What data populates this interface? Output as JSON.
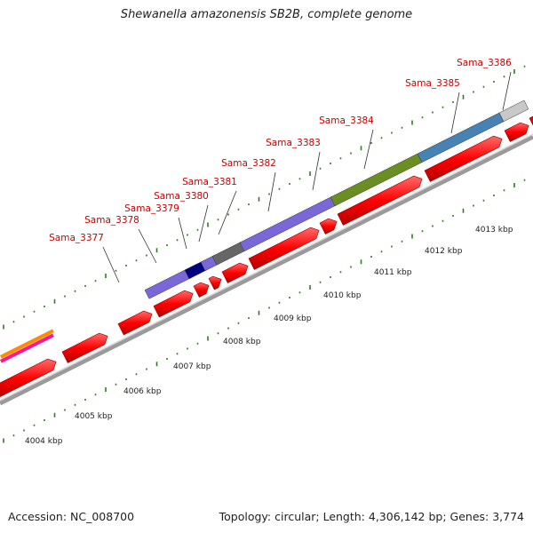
{
  "title": "Shewanella amazonensis SB2B, complete genome",
  "footer": {
    "accession": "Accession: NC_008700",
    "summary": "Topology: circular; Length: 4,306,142 bp; Genes: 3,774"
  },
  "gene_labels": [
    "Sama_3377",
    "Sama_3378",
    "Sama_3379",
    "Sama_3380",
    "Sama_3381",
    "Sama_3382",
    "Sama_3383",
    "Sama_3384",
    "Sama_3385",
    "Sama_3386"
  ],
  "kbp_labels": [
    "4004 kbp",
    "4005 kbp",
    "4006 kbp",
    "4007 kbp",
    "4008 kbp",
    "4009 kbp",
    "4010 kbp",
    "4011 kbp",
    "4012 kbp",
    "4013 kbp"
  ],
  "colors": {
    "gene_label": "#cc0000",
    "cds": "#ff0000",
    "tick": "#2e7d1e",
    "backbone": "#9a9a9a",
    "cog_purple": "#7b68d8",
    "cog_navy": "#000080",
    "cog_gray": "#666666",
    "cog_olive": "#6b8e23",
    "cog_steelblue": "#4682b4",
    "cog_lightgray": "#c8c8c8",
    "cog_orange": "#ff8c00",
    "cog_pink": "#ff1493"
  }
}
